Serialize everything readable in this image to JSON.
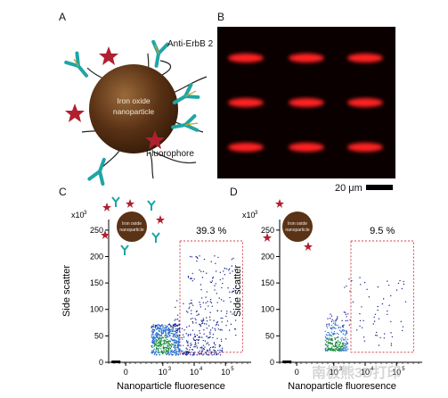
{
  "panels": {
    "A": {
      "letter": "A",
      "core_label_line1": "Iron oxide",
      "core_label_line2": "nanoparticle",
      "antibody_label": "Anti-ErbB 2",
      "fluorophore_label": "Fluorophore"
    },
    "B": {
      "letter": "B",
      "scale_bar_label": "20 μm",
      "grid_rows": 3,
      "grid_cols": 3
    },
    "C": {
      "letter": "C",
      "inset_core_line1": "Iron oxide",
      "inset_core_line2": "nanoparticle",
      "percentage": "39.3 %",
      "ylabel": "Side scatter",
      "xlabel": "Nanoparticle fluoresence",
      "y_multiplier": "x10",
      "y_multiplier_exp": "3",
      "yticks": [
        "0",
        "50",
        "100",
        "150",
        "200",
        "250"
      ],
      "xticks": [
        {
          "base": "0",
          "exp": ""
        },
        {
          "base": "10",
          "exp": "3"
        },
        {
          "base": "10",
          "exp": "4"
        },
        {
          "base": "10",
          "exp": "5"
        }
      ]
    },
    "D": {
      "letter": "D",
      "inset_core_line1": "Iron oxide",
      "inset_core_line2": "nanoparticle",
      "percentage": "9.5 %",
      "ylabel": "Side scatter",
      "xlabel": "Nanoparticle fluoresence",
      "y_multiplier": "x10",
      "y_multiplier_exp": "3",
      "yticks": [
        "0",
        "50",
        "100",
        "150",
        "200",
        "250"
      ],
      "xticks": [
        {
          "base": "0",
          "exp": ""
        },
        {
          "base": "10",
          "exp": "3"
        },
        {
          "base": "10",
          "exp": "4"
        },
        {
          "base": "10",
          "exp": "5"
        }
      ]
    }
  },
  "watermark": "南极熊3D打印",
  "colors": {
    "core": "#5a3215",
    "antibody": "#1fa5a5",
    "star": "#b0202f",
    "gate": "#d64050",
    "red_spot": "#ff2020"
  }
}
